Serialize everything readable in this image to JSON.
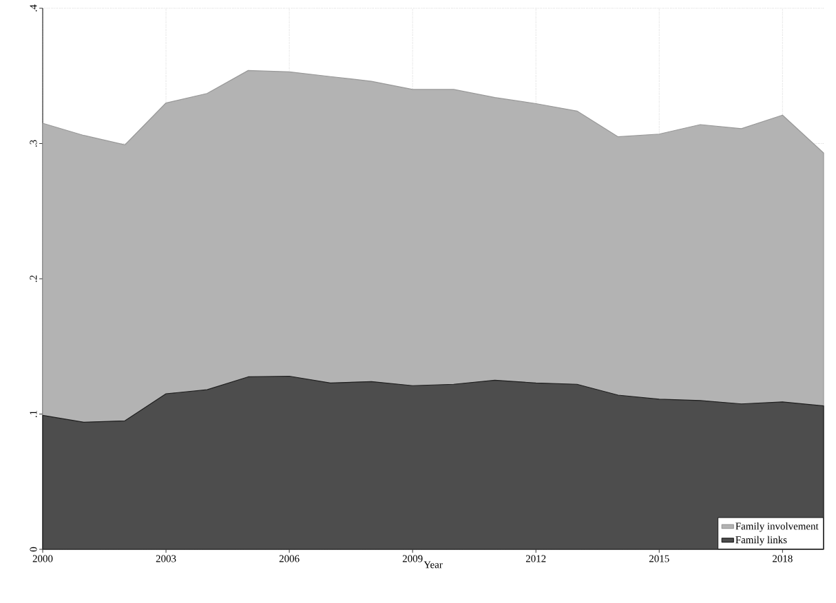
{
  "chart_data": {
    "type": "area",
    "xlabel": "Year",
    "x": [
      2000,
      2001,
      2002,
      2003,
      2004,
      2005,
      2006,
      2007,
      2008,
      2009,
      2010,
      2011,
      2012,
      2013,
      2014,
      2015,
      2016,
      2017,
      2018,
      2019
    ],
    "series": [
      {
        "name": "Family involvement",
        "color": "#b3b3b3",
        "values": [
          0.315,
          0.306,
          0.299,
          0.33,
          0.337,
          0.354,
          0.353,
          0.3495,
          0.346,
          0.34,
          0.34,
          0.334,
          0.3295,
          0.324,
          0.305,
          0.307,
          0.314,
          0.311,
          0.321,
          0.293
        ]
      },
      {
        "name": "Family links",
        "color": "#4d4d4d",
        "values": [
          0.099,
          0.094,
          0.095,
          0.115,
          0.118,
          0.1275,
          0.128,
          0.123,
          0.124,
          0.121,
          0.122,
          0.125,
          0.123,
          0.122,
          0.114,
          0.111,
          0.11,
          0.1075,
          0.109,
          0.106
        ]
      }
    ],
    "xlim": [
      2000,
      2019
    ],
    "xticks": [
      2000,
      2003,
      2006,
      2009,
      2012,
      2015,
      2018
    ],
    "ylim": [
      0,
      0.4
    ],
    "yticks": [
      {
        "value": 0,
        "label": "0"
      },
      {
        "value": 0.1,
        "label": ".1"
      },
      {
        "value": 0.2,
        "label": ".2"
      },
      {
        "value": 0.3,
        "label": ".3"
      },
      {
        "value": 0.4,
        "label": ".4"
      }
    ],
    "grid": true,
    "legend": "bottom right"
  }
}
